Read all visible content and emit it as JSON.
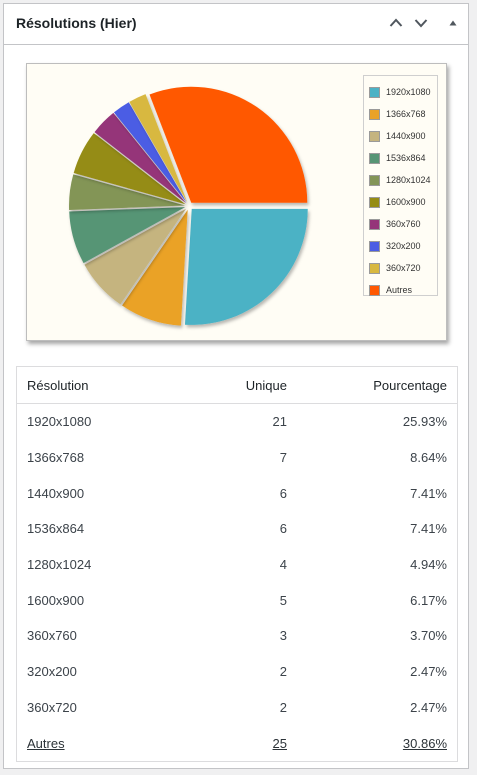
{
  "widget": {
    "title": "Résolutions (Hier)",
    "icons": [
      "chevron-up-icon",
      "chevron-down-icon",
      "triangle-up-icon"
    ]
  },
  "chart_data": {
    "type": "pie",
    "title": "",
    "legend_placement": "right",
    "categories": [
      "1920x1080",
      "1366x768",
      "1440x900",
      "1536x864",
      "1280x1024",
      "1600x900",
      "360x760",
      "320x200",
      "360x720",
      "Autres"
    ],
    "values": [
      25.93,
      8.64,
      7.41,
      7.41,
      4.94,
      6.17,
      3.7,
      2.47,
      2.47,
      30.86
    ],
    "colors": [
      "#4bb2c5",
      "#eaa228",
      "#c5b47f",
      "#579575",
      "#839557",
      "#958c12",
      "#953579",
      "#4b5de4",
      "#d8b83f",
      "#ff5800"
    ],
    "background": "#fffdf5"
  },
  "table": {
    "headers": [
      "Résolution",
      "Unique",
      "Pourcentage"
    ],
    "rows": [
      {
        "resolution": "1920x1080",
        "unique": "21",
        "percent": "25.93%"
      },
      {
        "resolution": "1366x768",
        "unique": "7",
        "percent": "8.64%"
      },
      {
        "resolution": "1440x900",
        "unique": "6",
        "percent": "7.41%"
      },
      {
        "resolution": "1536x864",
        "unique": "6",
        "percent": "7.41%"
      },
      {
        "resolution": "1280x1024",
        "unique": "4",
        "percent": "4.94%"
      },
      {
        "resolution": "1600x900",
        "unique": "5",
        "percent": "6.17%"
      },
      {
        "resolution": "360x760",
        "unique": "3",
        "percent": "3.70%"
      },
      {
        "resolution": "320x200",
        "unique": "2",
        "percent": "2.47%"
      },
      {
        "resolution": "360x720",
        "unique": "2",
        "percent": "2.47%"
      }
    ],
    "footer": {
      "resolution": "Autres",
      "unique": "25",
      "percent": "30.86%"
    }
  }
}
